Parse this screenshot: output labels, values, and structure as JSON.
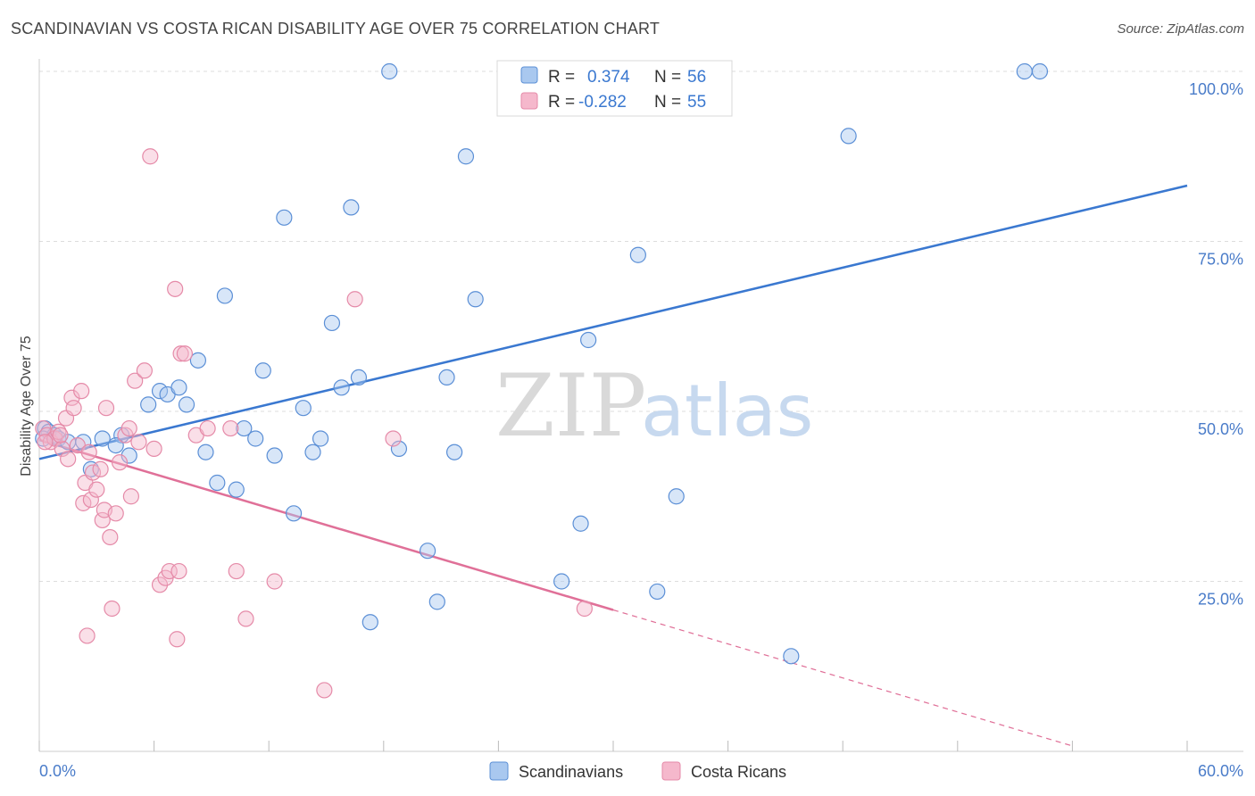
{
  "title": "SCANDINAVIAN VS COSTA RICAN DISABILITY AGE OVER 75 CORRELATION CHART",
  "source": "Source: ZipAtlas.com",
  "watermark": {
    "zip": "ZIP",
    "atlas": "atlas"
  },
  "colors": {
    "blue": "#3a78d0",
    "blue_fill": "#a9c8ef",
    "blue_stroke": "#5b8fd6",
    "pink": "#e07098",
    "pink_fill": "#f5b8cc",
    "pink_stroke": "#e58aa8",
    "grid": "#dddddd"
  },
  "legend": {
    "rows": [
      {
        "r_label": "R =",
        "r_value": "0.374",
        "n_label": "N =",
        "n_value": "56"
      },
      {
        "r_label": "R =",
        "r_value": "-0.282",
        "n_label": "N =",
        "n_value": "55"
      }
    ]
  },
  "chart_data": {
    "type": "scatter",
    "title": "SCANDINAVIAN VS COSTA RICAN DISABILITY AGE OVER 75 CORRELATION CHART",
    "xlabel": "",
    "ylabel": "Disability Age Over 75",
    "xlim": [
      0,
      60
    ],
    "ylim": [
      0,
      105
    ],
    "x_tick_labels": [
      "0.0%",
      "60.0%"
    ],
    "y_tick_labels": [
      "25.0%",
      "50.0%",
      "75.0%",
      "100.0%"
    ],
    "y_ticks": [
      25,
      50,
      75,
      100
    ],
    "grid": true,
    "legend_placement": "top-center",
    "series": [
      {
        "name": "Scandinavians",
        "color": "#3a78d0",
        "trend": {
          "x": [
            0,
            60
          ],
          "y": [
            43.0,
            83.2
          ]
        },
        "points": [
          [
            0.3,
            47.5
          ],
          [
            0.5,
            47.0
          ],
          [
            0.8,
            46.5
          ],
          [
            1.0,
            46.0
          ],
          [
            1.5,
            45.5
          ],
          [
            2.3,
            45.5
          ],
          [
            3.3,
            46.0
          ],
          [
            2.7,
            41.5
          ],
          [
            4.3,
            46.5
          ],
          [
            4.0,
            45.0
          ],
          [
            4.7,
            43.5
          ],
          [
            6.3,
            53.0
          ],
          [
            5.7,
            51.0
          ],
          [
            6.7,
            52.5
          ],
          [
            7.3,
            53.5
          ],
          [
            7.7,
            51.0
          ],
          [
            8.3,
            57.5
          ],
          [
            8.7,
            44.0
          ],
          [
            9.3,
            39.5
          ],
          [
            9.7,
            67.0
          ],
          [
            10.3,
            38.5
          ],
          [
            10.7,
            47.5
          ],
          [
            11.3,
            46.0
          ],
          [
            11.7,
            56.0
          ],
          [
            12.3,
            43.5
          ],
          [
            12.8,
            78.5
          ],
          [
            13.3,
            35.0
          ],
          [
            13.8,
            50.5
          ],
          [
            14.3,
            44.0
          ],
          [
            14.7,
            46.0
          ],
          [
            15.3,
            63.0
          ],
          [
            15.8,
            53.5
          ],
          [
            16.3,
            80.0
          ],
          [
            16.7,
            55.0
          ],
          [
            17.3,
            19.0
          ],
          [
            18.3,
            100.0
          ],
          [
            18.8,
            44.5
          ],
          [
            20.3,
            29.5
          ],
          [
            20.8,
            22.0
          ],
          [
            21.3,
            55.0
          ],
          [
            21.7,
            44.0
          ],
          [
            22.3,
            87.5
          ],
          [
            22.8,
            66.5
          ],
          [
            25.5,
            100.0
          ],
          [
            27.3,
            25.0
          ],
          [
            27.8,
            100.0
          ],
          [
            28.3,
            33.5
          ],
          [
            28.7,
            60.5
          ],
          [
            31.3,
            73.0
          ],
          [
            32.3,
            23.5
          ],
          [
            33.3,
            37.5
          ],
          [
            39.3,
            14.0
          ],
          [
            42.3,
            90.5
          ],
          [
            51.5,
            100.0
          ],
          [
            52.3,
            100.0
          ],
          [
            0.2,
            46.0
          ]
        ]
      },
      {
        "name": "Costa Ricans",
        "color": "#e07098",
        "trend": {
          "x": [
            0,
            30
          ],
          "y": [
            45.8,
            20.8
          ]
        },
        "trend_dashed": {
          "x": [
            30,
            54
          ],
          "y": [
            20.8,
            0.8
          ]
        },
        "points": [
          [
            0.2,
            47.5
          ],
          [
            0.4,
            46.5
          ],
          [
            0.6,
            45.5
          ],
          [
            0.8,
            46.0
          ],
          [
            1.0,
            47.0
          ],
          [
            1.2,
            44.5
          ],
          [
            1.4,
            49.0
          ],
          [
            1.5,
            43.0
          ],
          [
            1.7,
            52.0
          ],
          [
            1.8,
            50.5
          ],
          [
            2.0,
            45.0
          ],
          [
            2.2,
            53.0
          ],
          [
            2.3,
            36.5
          ],
          [
            2.4,
            39.5
          ],
          [
            2.5,
            17.0
          ],
          [
            2.6,
            44.0
          ],
          [
            2.7,
            37.0
          ],
          [
            2.8,
            41.0
          ],
          [
            3.0,
            38.5
          ],
          [
            3.2,
            41.5
          ],
          [
            3.3,
            34.0
          ],
          [
            3.4,
            35.5
          ],
          [
            3.5,
            50.5
          ],
          [
            3.7,
            31.5
          ],
          [
            3.8,
            21.0
          ],
          [
            4.0,
            35.0
          ],
          [
            4.2,
            42.5
          ],
          [
            4.5,
            46.5
          ],
          [
            4.7,
            47.5
          ],
          [
            4.8,
            37.5
          ],
          [
            5.0,
            54.5
          ],
          [
            5.2,
            45.5
          ],
          [
            5.5,
            56.0
          ],
          [
            5.8,
            87.5
          ],
          [
            6.0,
            44.5
          ],
          [
            6.3,
            24.5
          ],
          [
            6.6,
            25.5
          ],
          [
            6.8,
            26.5
          ],
          [
            7.1,
            68.0
          ],
          [
            7.4,
            58.5
          ],
          [
            7.6,
            58.5
          ],
          [
            7.3,
            26.5
          ],
          [
            7.2,
            16.5
          ],
          [
            8.2,
            46.5
          ],
          [
            8.8,
            47.5
          ],
          [
            10.0,
            47.5
          ],
          [
            10.3,
            26.5
          ],
          [
            10.8,
            19.5
          ],
          [
            12.3,
            25.0
          ],
          [
            14.9,
            9.0
          ],
          [
            16.5,
            66.5
          ],
          [
            18.5,
            46.0
          ],
          [
            28.5,
            21.0
          ],
          [
            0.3,
            45.5
          ],
          [
            1.1,
            46.5
          ]
        ]
      }
    ]
  },
  "bottom_legend": {
    "items": [
      {
        "label": "Scandinavians"
      },
      {
        "label": "Costa Ricans"
      }
    ]
  }
}
